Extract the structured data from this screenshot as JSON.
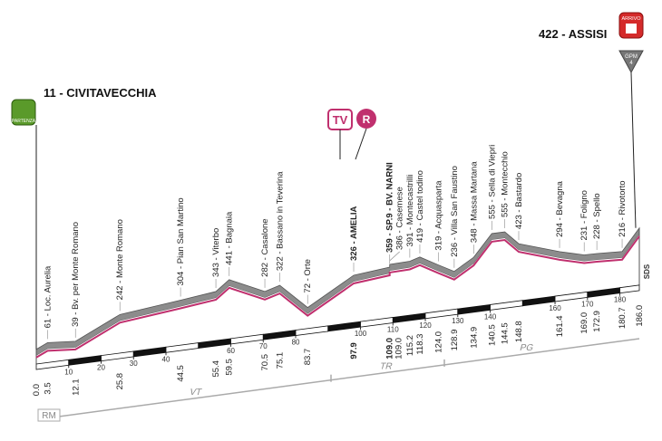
{
  "chart_data": {
    "type": "profile",
    "start": {
      "label": "11 - CIVITAVECCHIA",
      "badge": "PARTENZA"
    },
    "finish": {
      "label": "422 - ASSISI",
      "badge": "ARRIVO",
      "climb": "GPM",
      "climb_cat": "4",
      "note": "SDS"
    },
    "badges": [
      "TV",
      "R"
    ],
    "x": [
      {
        "value": 0,
        "label": "0.0"
      },
      3.5,
      12.1,
      25.8,
      44.5,
      55.4,
      59.5,
      70.5,
      75.1,
      83.7,
      97.9,
      {
        "value": 109,
        "label": "109.0"
      },
      {
        "value": 109,
        "label": "109.0"
      },
      115.2,
      118.3,
      {
        "value": 124,
        "label": "124.0"
      },
      128.9,
      134.9,
      140.5,
      144.5,
      148.8,
      161.4,
      {
        "value": 169,
        "label": "169.0"
      },
      172.9,
      180.7,
      {
        "value": 186,
        "label": "186.0"
      }
    ],
    "values": [
      11,
      61,
      39,
      242,
      304,
      343,
      441,
      282,
      322,
      72,
      326,
      359,
      386,
      391,
      419,
      319,
      236,
      348,
      555,
      555,
      423,
      294,
      231,
      228,
      216,
      422
    ],
    "names": [
      null,
      "61 - Loc. Aurelia",
      "39 - Bv. per Monte Romano",
      "242 - Monte Romano",
      "304 - Pian San Martino",
      "343 - Viterbo",
      "441 - Bagnaia",
      "282 - Casalone",
      "322 - Bassano in Teverina",
      "72 - Orte",
      "326 - AMELIA",
      "359 - SP.9 - BV. NARNI",
      "386 - Casemese",
      "391 - Montecastrilli",
      "419 - Castel todino",
      "319 - Acquasparta",
      "236 - Villa San Faustino",
      "348 - Massa Martana",
      "555 - Sella di Viepri",
      "555 - Montecchio",
      "423 - Bastardo",
      "294 - Bevagna",
      "231 - Foligno",
      "228 - Spello",
      "216 - Rivotorto",
      null
    ],
    "highlight": [
      10,
      11
    ],
    "xlim": [
      0,
      186
    ],
    "xticks": [
      10,
      20,
      30,
      40,
      60,
      70,
      80,
      100,
      110,
      120,
      130,
      140,
      160,
      170,
      180
    ],
    "regions": [
      "RM",
      "VT",
      "TR",
      "PG"
    ],
    "line_color": "#c0306e"
  }
}
